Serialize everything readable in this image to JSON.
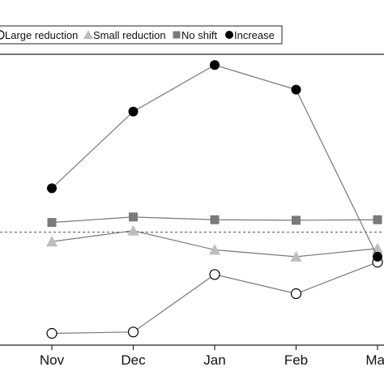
{
  "chart_data": {
    "type": "line",
    "title": "",
    "xlabel": "",
    "ylabel": "",
    "categories": [
      "Nov",
      "Dec",
      "Jan",
      "Feb",
      "Mar"
    ],
    "ylim": [
      0,
      100
    ],
    "grid": false,
    "legend_position": "top",
    "reference_line": {
      "y": 42,
      "style": "dotted",
      "color": "#555555"
    },
    "series": [
      {
        "name": "Large reduction",
        "marker": "open-circle",
        "color": "#666666",
        "values": [
          5,
          5.5,
          26.5,
          19.5,
          31
        ]
      },
      {
        "name": "Small reduction",
        "marker": "triangle",
        "color": "#bdbdbd",
        "values": [
          38.5,
          42.5,
          35.5,
          33,
          36
        ]
      },
      {
        "name": "No shift",
        "marker": "square",
        "color": "#7a7a7a",
        "values": [
          45.5,
          47.5,
          46.5,
          46.3,
          46.5
        ]
      },
      {
        "name": "Increase",
        "marker": "filled-circle",
        "color": "#000000",
        "values": [
          58,
          86,
          103,
          94,
          33
        ]
      }
    ]
  }
}
